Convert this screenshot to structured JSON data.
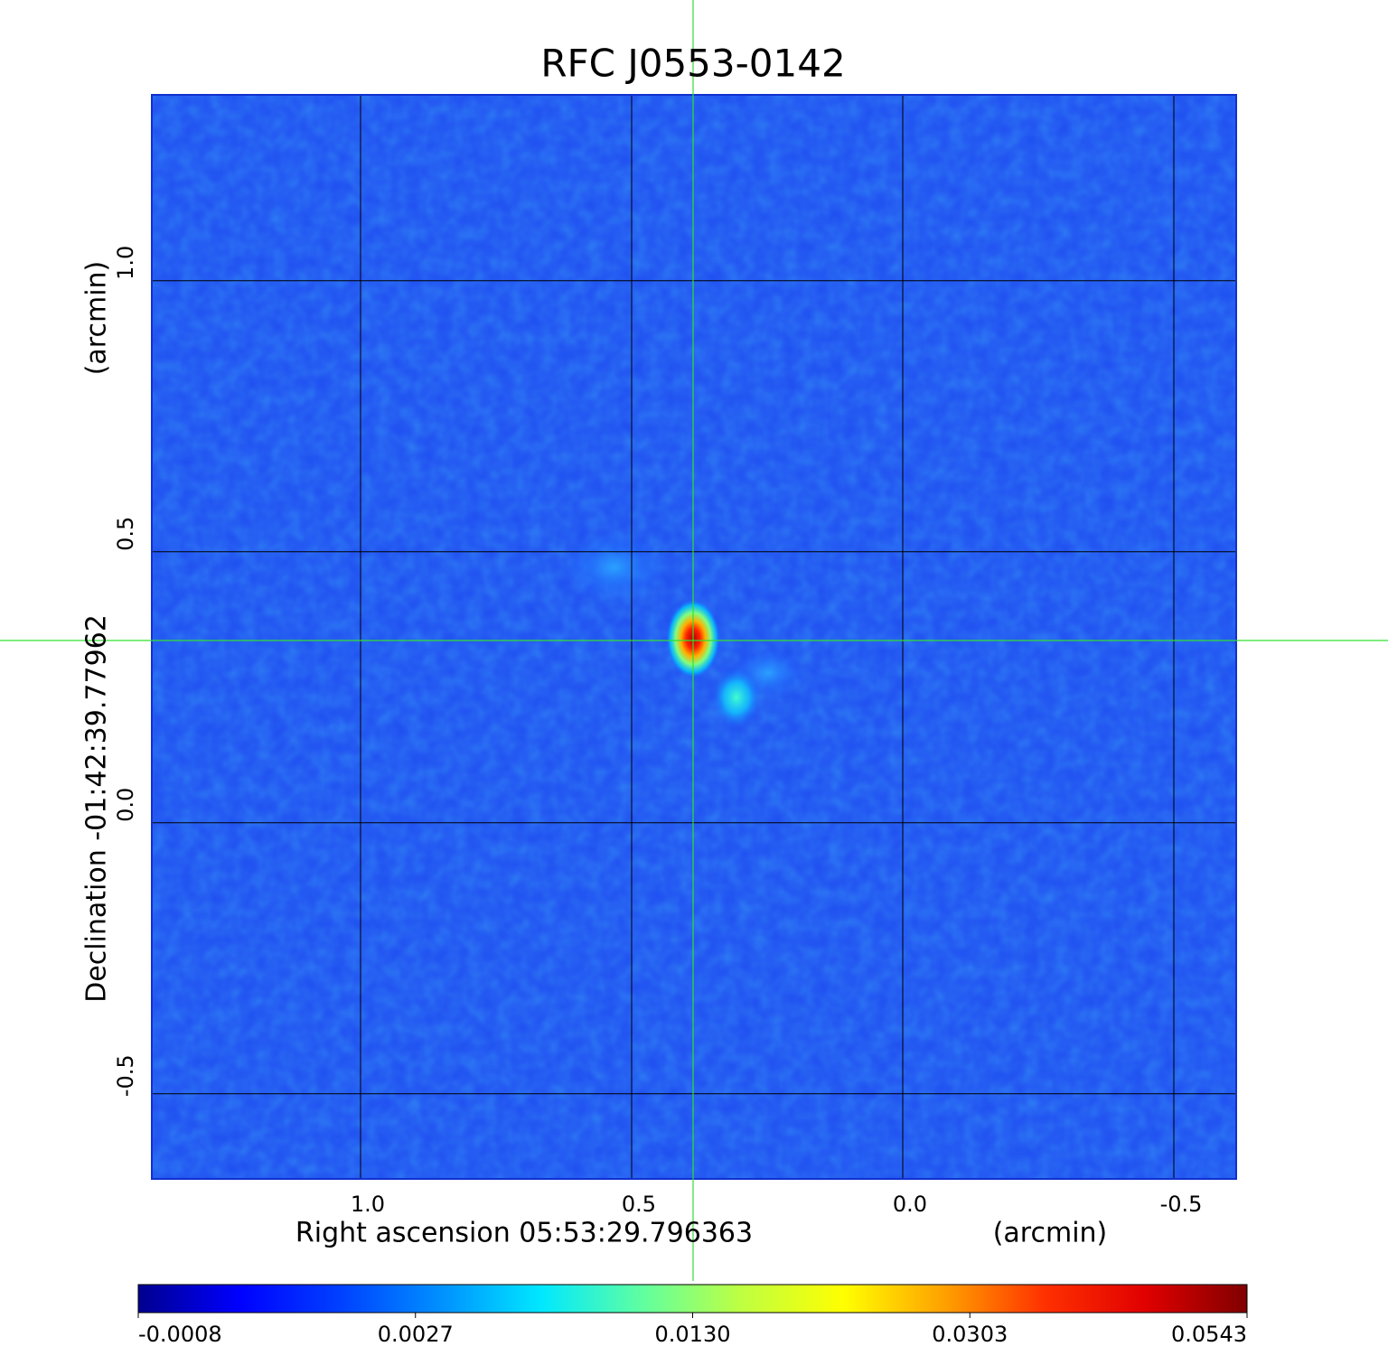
{
  "chart_data": {
    "type": "image",
    "title": "RFC J0553-0142",
    "title_color": "#1010cc",
    "x_label": "Right ascension  05:53:29.796363",
    "x_unit": "(arcmin)",
    "y_label": "Declination  -01:42:39.77962",
    "y_unit": "(arcmin)",
    "xlim": [
      1.385,
      -0.615
    ],
    "ylim": [
      -0.657,
      1.343
    ],
    "xticks": [
      {
        "value": 1,
        "label": "1.0"
      },
      0.5,
      {
        "value": 0,
        "label": "0.0"
      },
      -0.5
    ],
    "yticks": [
      {
        "value": 1,
        "label": "1.0"
      },
      0.5,
      {
        "value": 0,
        "label": "0.0"
      },
      -0.5
    ],
    "grid": true,
    "colormap": "jet",
    "colorbar_ticks": [
      -0.0008,
      0.0027,
      {
        "value": 0.013,
        "label": "0.0130"
      },
      0.0303,
      0.0543
    ]
  }
}
